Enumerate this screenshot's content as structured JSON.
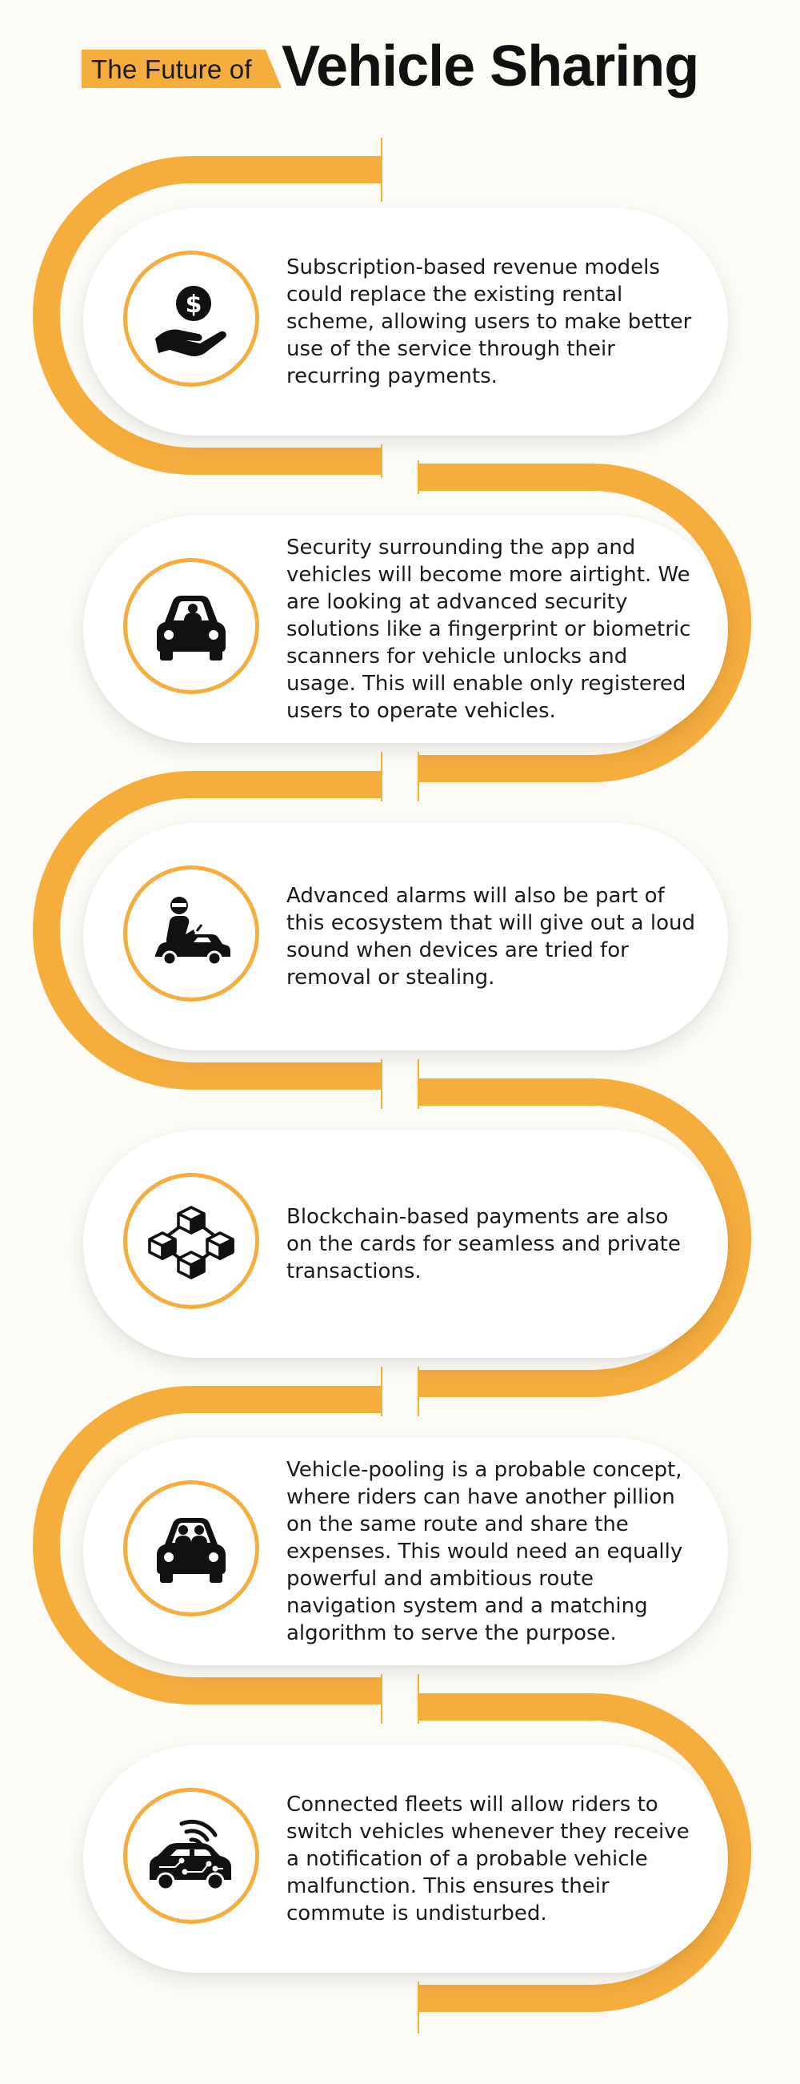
{
  "header": {
    "title_small": "The Future of",
    "title_big": "Vehicle Sharing"
  },
  "colors": {
    "accent": "#f5ad3e",
    "background": "#fdfbf6",
    "text": "#1b1b1b"
  },
  "cards": [
    {
      "icon": "money-hand-icon",
      "text": "Subscription-based revenue models could replace the existing rental scheme, allowing users to make better use of the service through their recurring payments."
    },
    {
      "icon": "car-driver-icon",
      "text": "Security surrounding the app and vehicles will become more airtight. We are looking at advanced security solutions like a fingerprint or biometric scanners for vehicle unlocks and usage. This will enable only registered users to operate vehicles."
    },
    {
      "icon": "car-thief-icon",
      "text": "Advanced alarms will also be part of this ecosystem that will give out a loud sound when devices are tried for removal or stealing."
    },
    {
      "icon": "blockchain-icon",
      "text": "Blockchain-based payments are also on the cards for seamless and private transactions."
    },
    {
      "icon": "carpool-icon",
      "text": "Vehicle-pooling is a probable concept, where riders can have another pillion on the same route and share the expenses. This would need an equally powerful and ambitious route navigation system and a matching algorithm to serve the purpose."
    },
    {
      "icon": "connected-car-icon",
      "text": "Connected fleets will allow riders to switch vehicles whenever they receive a notification of a probable vehicle malfunction. This ensures their commute is undisturbed."
    }
  ]
}
